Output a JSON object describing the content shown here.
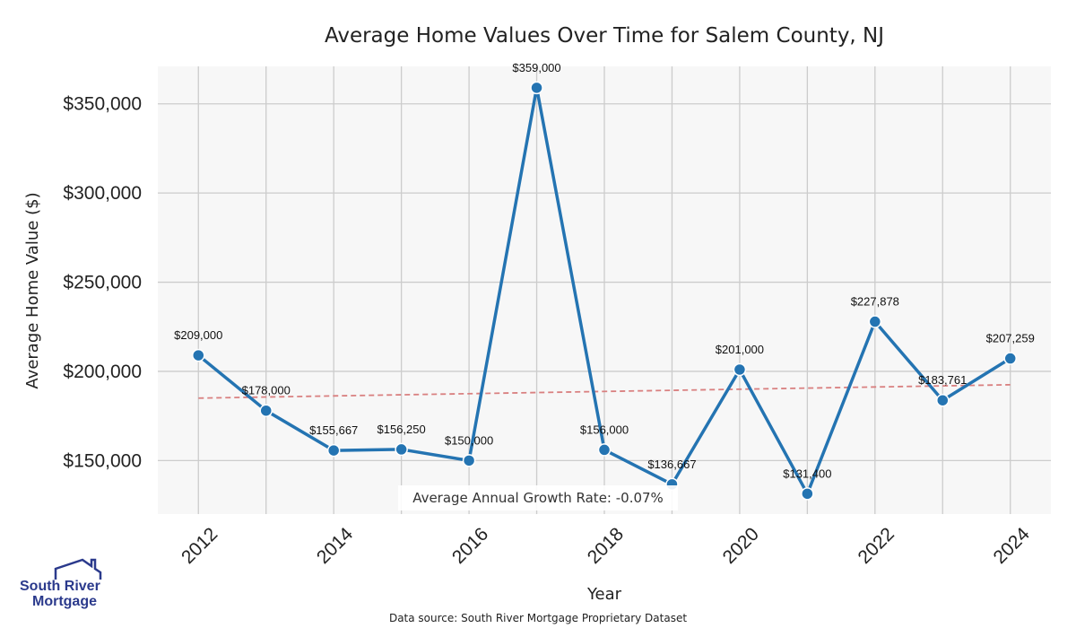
{
  "chart_data": {
    "type": "line",
    "title": "Average Home Values Over Time for Salem County, NJ",
    "xlabel": "Year",
    "ylabel": "Average Home Value ($)",
    "x": [
      2012,
      2013,
      2014,
      2015,
      2016,
      2017,
      2018,
      2019,
      2020,
      2021,
      2022,
      2023,
      2024
    ],
    "values": [
      209000,
      178000,
      155667,
      156250,
      150000,
      359000,
      156000,
      136667,
      201000,
      131400,
      227878,
      183761,
      207259
    ],
    "data_labels": [
      "$209,000",
      "$178,000",
      "$155,667",
      "$156,250",
      "$150,000",
      "$359,000",
      "$156,000",
      "$136,667",
      "$201,000",
      "$131,400",
      "$227,878",
      "$183,761",
      "$207,259"
    ],
    "xticks": [
      "2012",
      "2014",
      "2016",
      "2018",
      "2020",
      "2022",
      "2024"
    ],
    "xtick_values": [
      2012,
      2014,
      2016,
      2018,
      2020,
      2022,
      2024
    ],
    "yticks": [
      "$150,000",
      "$200,000",
      "$250,000",
      "$300,000",
      "$350,000"
    ],
    "ytick_values": [
      150000,
      200000,
      250000,
      300000,
      350000
    ],
    "xlim": [
      2011.4,
      2024.6
    ],
    "ylim": [
      120000,
      371000
    ],
    "trendline": {
      "start": [
        2012,
        185000
      ],
      "end": [
        2024,
        192500
      ],
      "style": "dashed"
    },
    "annotation": "Average Annual Growth Rate: -0.07%",
    "grid": true,
    "colors": {
      "line": "#2474b2",
      "trend": "#d98080",
      "plot_bg": "#f7f7f7",
      "grid": "#cccccc"
    }
  },
  "footer": {
    "source": "Data source: South River Mortgage Proprietary Dataset"
  },
  "logo": {
    "line1": "South River",
    "line2": "Mortgage",
    "color": "#2b3a8c"
  }
}
